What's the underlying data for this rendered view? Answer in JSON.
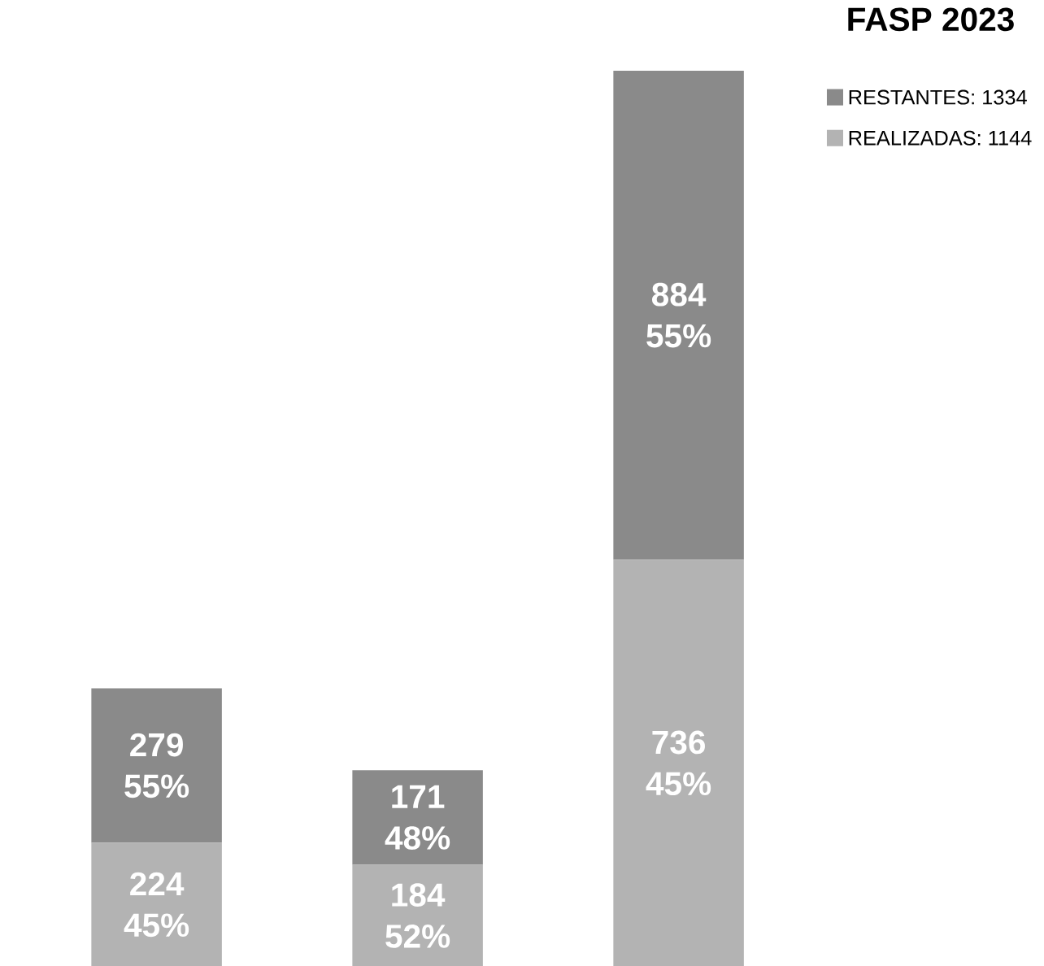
{
  "chart_data": {
    "type": "bar",
    "stacked": true,
    "title": "FASP 2023",
    "categories": [
      null,
      null,
      null
    ],
    "series": [
      {
        "name": "REALIZADAS: 1144",
        "color": "#b3b3b3",
        "values": [
          224,
          184,
          736
        ],
        "value_labels": [
          "224 45%",
          "184 52%",
          "736 45%"
        ]
      },
      {
        "name": "RESTANTES: 1334",
        "color": "#8a8a8a",
        "values": [
          279,
          171,
          884
        ],
        "value_labels": [
          "279 55%",
          "171 48%",
          "884 55%"
        ]
      }
    ],
    "legend": "top right"
  }
}
